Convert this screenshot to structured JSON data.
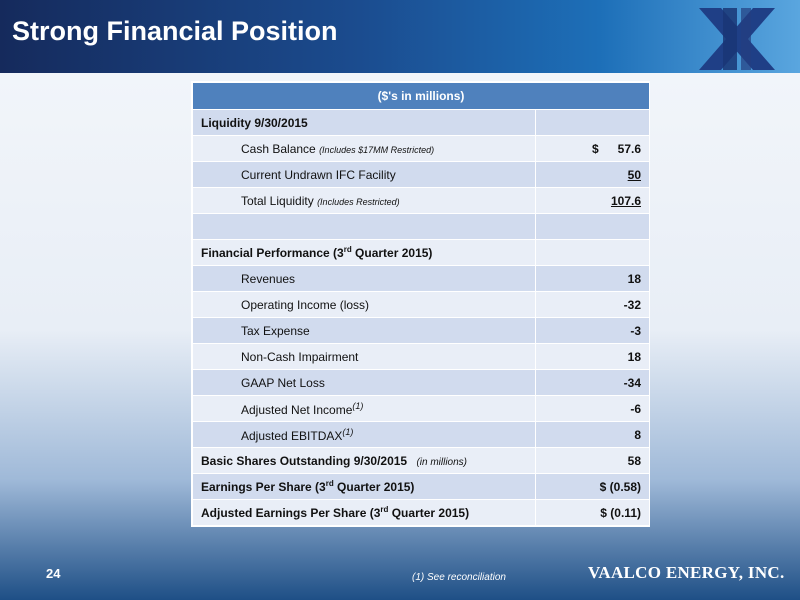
{
  "slide": {
    "title": "Strong Financial Position",
    "page_number": "24",
    "footnote": "(1)  See reconciliation",
    "company": "VAALCO ENERGY, INC."
  },
  "table": {
    "header": "($'s in millions)",
    "liquidity_heading": "Liquidity 9/30/2015",
    "cash_balance_label": "Cash Balance",
    "cash_balance_note": "(Includes $17MM Restricted)",
    "cash_balance_currency": "$",
    "cash_balance_value": "57.6",
    "ifc_label": "Current Undrawn IFC Facility",
    "ifc_value": "50",
    "total_liquidity_label": "Total Liquidity",
    "total_liquidity_note": "(Includes Restricted)",
    "total_liquidity_value": "107.6",
    "perf_heading_pre": "Financial Performance (3",
    "perf_heading_sup": "rd",
    "perf_heading_post": " Quarter 2015)",
    "rows": [
      {
        "label": "Revenues",
        "value": "18"
      },
      {
        "label": "Operating Income (loss)",
        "value": "-32"
      },
      {
        "label": "Tax Expense",
        "value": "-3"
      },
      {
        "label": "Non-Cash Impairment",
        "value": "18"
      },
      {
        "label": "GAAP Net Loss",
        "value": "-34"
      }
    ],
    "adj_net_income_label": "Adjusted Net Income",
    "adj_net_income_sup": "(1)",
    "adj_net_income_value": "-6",
    "adj_ebitdax_label": "Adjusted EBITDAX",
    "adj_ebitdax_sup": "(1)",
    "adj_ebitdax_value": "8",
    "shares_label": "Basic Shares Outstanding  9/30/2015",
    "shares_note": "(in millions)",
    "shares_value": "58",
    "eps_pre": "Earnings Per Share (3",
    "eps_sup": "rd",
    "eps_post": " Quarter 2015)",
    "eps_value": "$  (0.58)",
    "adj_eps_pre": "Adjusted Earnings Per Share (3",
    "adj_eps_sup": "rd",
    "adj_eps_post": " Quarter 2015)",
    "adj_eps_value": "$  (0.11)"
  },
  "colors": {
    "header_band": "#1b4c8f",
    "table_header": "#4f81bd",
    "row_shade": "#d1dbee",
    "row_light": "#e9eef7"
  }
}
